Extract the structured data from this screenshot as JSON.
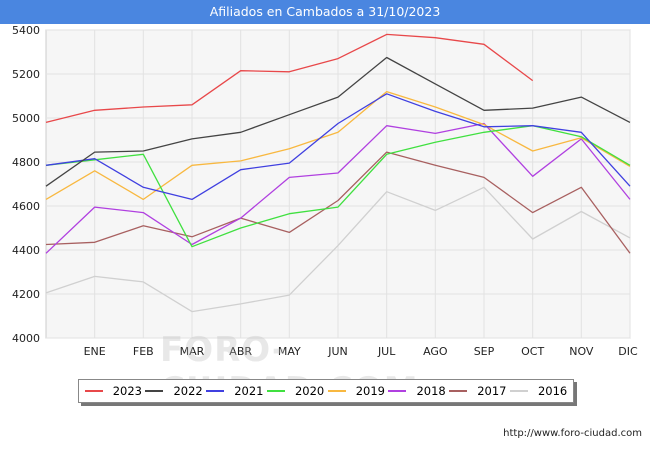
{
  "header": {
    "title": "Afiliados en Cambados a 31/10/2023"
  },
  "footer": {
    "url": "http://www.foro-ciudad.com"
  },
  "watermark": "FORO-CIUDAD.COM",
  "chart_data": {
    "type": "line",
    "title": "Afiliados en Cambados a 31/10/2023",
    "xlabel": "",
    "ylabel": "",
    "categories": [
      "",
      "ENE",
      "FEB",
      "MAR",
      "ABR",
      "MAY",
      "JUN",
      "JUL",
      "AGO",
      "SEP",
      "OCT",
      "NOV",
      "DIC"
    ],
    "ylim": [
      4000,
      5400
    ],
    "yticks": [
      4000,
      4200,
      4400,
      4600,
      4800,
      5000,
      5200,
      5400
    ],
    "grid": true,
    "legend_position": "bottom",
    "series": [
      {
        "name": "2023",
        "color": "#e8484a",
        "values": [
          4980,
          5035,
          5050,
          5060,
          5215,
          5210,
          5270,
          5380,
          5365,
          5335,
          5170,
          null,
          null
        ]
      },
      {
        "name": "2022",
        "color": "#444444",
        "values": [
          4690,
          4845,
          4850,
          4905,
          4935,
          5015,
          5095,
          5275,
          5155,
          5035,
          5045,
          5095,
          4980
        ]
      },
      {
        "name": "2021",
        "color": "#4040e0",
        "values": [
          4785,
          4815,
          4685,
          4630,
          4765,
          4795,
          4975,
          5110,
          5030,
          4960,
          4965,
          4935,
          4690
        ]
      },
      {
        "name": "2020",
        "color": "#40e040",
        "values": [
          4785,
          4810,
          4835,
          4415,
          4500,
          4565,
          4595,
          4835,
          4890,
          4935,
          4965,
          4915,
          4785
        ]
      },
      {
        "name": "2019",
        "color": "#f8b840",
        "values": [
          4630,
          4760,
          4630,
          4785,
          4805,
          4860,
          4935,
          5120,
          5050,
          4970,
          4850,
          4910,
          4780
        ]
      },
      {
        "name": "2018",
        "color": "#b040e0",
        "values": [
          4385,
          4595,
          4570,
          4425,
          4545,
          4730,
          4750,
          4965,
          4930,
          4975,
          4735,
          4905,
          4630
        ]
      },
      {
        "name": "2017",
        "color": "#a86060",
        "values": [
          4425,
          4435,
          4510,
          4460,
          4545,
          4480,
          4625,
          4845,
          4785,
          4730,
          4570,
          4685,
          4385
        ]
      },
      {
        "name": "2016",
        "color": "#d0d0d0",
        "values": [
          4205,
          4280,
          4255,
          4120,
          4155,
          4195,
          4420,
          4665,
          4580,
          4685,
          4450,
          4575,
          4455
        ]
      }
    ]
  }
}
